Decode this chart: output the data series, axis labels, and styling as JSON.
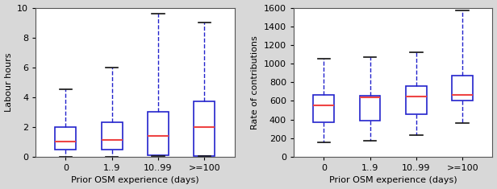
{
  "left": {
    "ylabel": "Labour hours",
    "xlabel": "Prior OSM experience (days)",
    "categories": [
      "0",
      "1..9",
      "10..99",
      ">=100"
    ],
    "ylim": [
      0,
      10
    ],
    "yticks": [
      0,
      2,
      4,
      6,
      8,
      10
    ],
    "boxes": [
      {
        "q1": 0.5,
        "median": 1.0,
        "q3": 2.0,
        "whislo": 0.0,
        "whishi": 4.5,
        "fliers": []
      },
      {
        "q1": 0.5,
        "median": 1.1,
        "q3": 2.3,
        "whislo": 0.0,
        "whishi": 6.0,
        "fliers": []
      },
      {
        "q1": 0.1,
        "median": 1.4,
        "q3": 3.0,
        "whislo": 0.05,
        "whishi": 9.6,
        "fliers": []
      },
      {
        "q1": 0.05,
        "median": 2.0,
        "q3": 3.7,
        "whislo": 0.05,
        "whishi": 9.0,
        "fliers": []
      }
    ]
  },
  "right": {
    "ylabel": "Rate of contributions",
    "xlabel": "Prior OSM experience (days)",
    "categories": [
      "0",
      "1..9",
      "10..99",
      ">=100"
    ],
    "ylim": [
      0,
      1600
    ],
    "yticks": [
      0,
      200,
      400,
      600,
      800,
      1000,
      1200,
      1400,
      1600
    ],
    "boxes": [
      {
        "q1": 370,
        "median": 555,
        "q3": 660,
        "whislo": 150,
        "whishi": 1050,
        "fliers": []
      },
      {
        "q1": 390,
        "median": 635,
        "q3": 655,
        "whislo": 170,
        "whishi": 1070,
        "fliers": []
      },
      {
        "q1": 460,
        "median": 648,
        "q3": 760,
        "whislo": 230,
        "whishi": 1120,
        "fliers": []
      },
      {
        "q1": 605,
        "median": 660,
        "q3": 870,
        "whislo": 360,
        "whishi": 1570,
        "fliers": []
      }
    ]
  },
  "box_facecolor": "#ffffff",
  "box_edgecolor": "#2222cc",
  "median_color": "#ee4444",
  "whisker_color": "#2222cc",
  "cap_color": "#111111",
  "bg_color": "#ffffff",
  "outer_bg": "#d8d8d8",
  "fontsize": 8,
  "tick_fontsize": 8
}
